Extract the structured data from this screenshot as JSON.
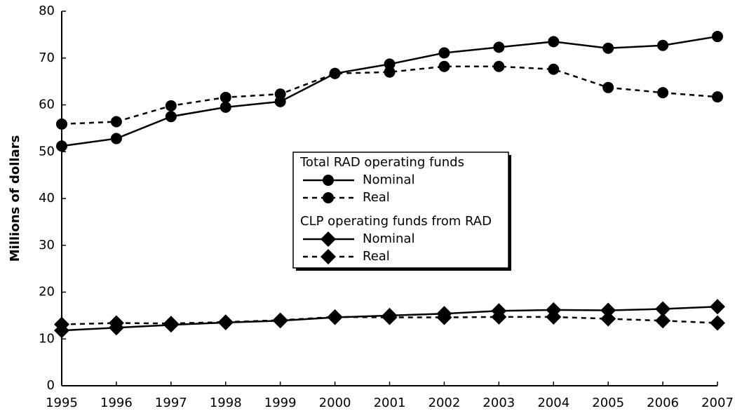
{
  "chart_data": {
    "type": "line",
    "y_label": "Millions of dollars",
    "x": [
      1995,
      1996,
      1997,
      1998,
      1999,
      2000,
      2001,
      2002,
      2003,
      2004,
      2005,
      2006,
      2007
    ],
    "xlim": [
      1995,
      2007
    ],
    "xticks": [
      1995,
      1996,
      1997,
      1998,
      1999,
      2000,
      2001,
      2002,
      2003,
      2004,
      2005,
      2006,
      2007
    ],
    "ylim": [
      0,
      80
    ],
    "yticks": [
      0,
      10,
      20,
      30,
      40,
      50,
      60,
      70,
      80
    ],
    "grid": false,
    "groups": [
      {
        "name": "Total RAD operating funds",
        "marker": "circle",
        "series": [
          {
            "name": "Nominal",
            "color": "#000000",
            "dash": "solid",
            "values": [
              51.2,
              52.8,
              57.5,
              59.5,
              60.7,
              66.7,
              68.7,
              71.1,
              72.3,
              73.5,
              72.1,
              72.7,
              74.6
            ]
          },
          {
            "name": "Real",
            "color": "#000000",
            "dash": "dashed",
            "values": [
              55.9,
              56.4,
              59.8,
              61.6,
              62.3,
              66.7,
              67.0,
              68.2,
              68.2,
              67.6,
              63.7,
              62.6,
              61.7
            ]
          }
        ]
      },
      {
        "name": "CLP operating funds from RAD",
        "marker": "diamond",
        "series": [
          {
            "name": "Nominal",
            "color": "#000000",
            "dash": "solid",
            "values": [
              11.8,
              12.4,
              13.0,
              13.5,
              13.9,
              14.6,
              15.0,
              15.4,
              16.0,
              16.2,
              16.1,
              16.4,
              16.9
            ]
          },
          {
            "name": "Real",
            "color": "#000000",
            "dash": "dashed",
            "values": [
              13.1,
              13.4,
              13.3,
              13.6,
              14.0,
              14.7,
              14.6,
              14.6,
              14.7,
              14.7,
              14.3,
              13.9,
              13.4
            ]
          }
        ]
      }
    ]
  }
}
